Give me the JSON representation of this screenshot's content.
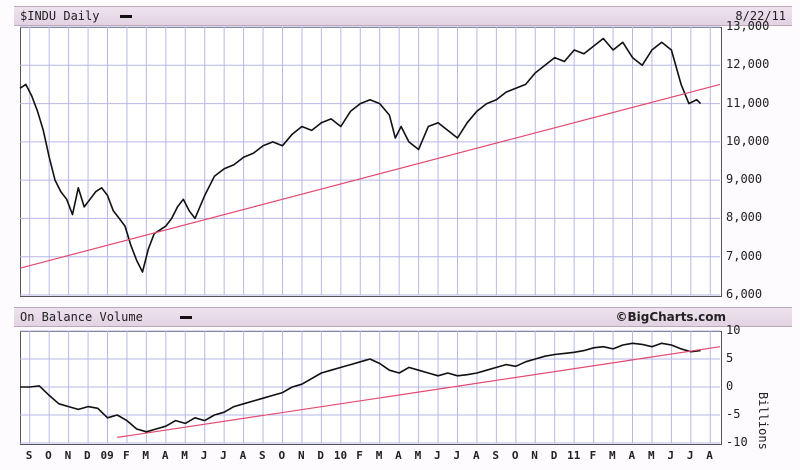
{
  "chart_data": [
    {
      "type": "line",
      "title": "$INDU Daily",
      "date": "8/22/11",
      "ylim": [
        6000,
        13000
      ],
      "yticks": [
        6000,
        7000,
        8000,
        9000,
        10000,
        11000,
        12000,
        13000
      ],
      "ytick_labels": [
        "6,000",
        "7,000",
        "8,000",
        "9,000",
        "10,000",
        "11,000",
        "12,000",
        "13,000"
      ],
      "xlim": [
        0,
        36
      ],
      "grid": true,
      "series": [
        {
          "color": "#111111",
          "x": [
            0,
            0.3,
            0.6,
            0.9,
            1.2,
            1.5,
            1.8,
            2.1,
            2.4,
            2.7,
            3.0,
            3.3,
            3.6,
            3.9,
            4.2,
            4.5,
            4.8,
            5.1,
            5.4,
            5.7,
            6.0,
            6.3,
            6.6,
            6.9,
            7.2,
            7.5,
            7.8,
            8.1,
            8.4,
            8.7,
            9.0,
            9.5,
            10.0,
            10.5,
            11.0,
            11.5,
            12.0,
            12.5,
            13.0,
            13.5,
            14.0,
            14.5,
            15.0,
            15.5,
            16.0,
            16.5,
            17.0,
            17.5,
            18.0,
            18.5,
            19.0,
            19.3,
            19.6,
            20.0,
            20.5,
            21.0,
            21.5,
            22.0,
            22.5,
            23.0,
            23.5,
            24.0,
            24.5,
            25.0,
            25.5,
            26.0,
            26.5,
            27.0,
            27.5,
            28.0,
            28.5,
            29.0,
            29.5,
            30.0,
            30.5,
            31.0,
            31.5,
            32.0,
            32.5,
            33.0,
            33.5,
            34.0,
            34.4,
            34.8,
            35.0
          ],
          "values": [
            11400,
            11500,
            11200,
            10800,
            10300,
            9600,
            9000,
            8700,
            8500,
            8100,
            8800,
            8300,
            8500,
            8700,
            8800,
            8600,
            8200,
            8000,
            7800,
            7300,
            6900,
            6600,
            7200,
            7600,
            7700,
            7800,
            8000,
            8300,
            8500,
            8200,
            8000,
            8600,
            9100,
            9300,
            9400,
            9600,
            9700,
            9900,
            10000,
            9900,
            10200,
            10400,
            10300,
            10500,
            10600,
            10400,
            10800,
            11000,
            11100,
            11000,
            10700,
            10100,
            10400,
            10000,
            9800,
            10400,
            10500,
            10300,
            10100,
            10500,
            10800,
            11000,
            11100,
            11300,
            11400,
            11500,
            11800,
            12000,
            12200,
            12100,
            12400,
            12300,
            12500,
            12700,
            12400,
            12600,
            12200,
            12000,
            12400,
            12600,
            12400,
            11500,
            11000,
            11100,
            11000
          ]
        },
        {
          "color": "#e24a6e",
          "x": [
            0,
            36
          ],
          "values": [
            6700,
            11500
          ]
        }
      ]
    },
    {
      "type": "line",
      "title": "On Balance Volume",
      "ylabel": "Billions",
      "ylim": [
        -10,
        10
      ],
      "yticks": [
        -10,
        -5,
        0,
        5,
        10
      ],
      "ytick_labels": [
        "-10",
        "-5",
        "0",
        "5",
        "10"
      ],
      "xlim": [
        0,
        36
      ],
      "grid": true,
      "series": [
        {
          "color": "#111111",
          "x": [
            0,
            0.5,
            1.0,
            1.5,
            2.0,
            2.5,
            3.0,
            3.5,
            4.0,
            4.5,
            5.0,
            5.5,
            6.0,
            6.5,
            7.0,
            7.5,
            8.0,
            8.5,
            9.0,
            9.5,
            10.0,
            10.5,
            11.0,
            11.5,
            12.0,
            12.5,
            13.0,
            13.5,
            14.0,
            14.5,
            15.0,
            15.5,
            16.0,
            16.5,
            17.0,
            17.5,
            18.0,
            18.5,
            19.0,
            19.5,
            20.0,
            20.5,
            21.0,
            21.5,
            22.0,
            22.5,
            23.0,
            23.5,
            24.0,
            24.5,
            25.0,
            25.5,
            26.0,
            26.5,
            27.0,
            27.5,
            28.0,
            28.5,
            29.0,
            29.5,
            30.0,
            30.5,
            31.0,
            31.5,
            32.0,
            32.5,
            33.0,
            33.5,
            34.0,
            34.5,
            35.0
          ],
          "values": [
            0,
            0,
            0.2,
            -1.5,
            -3,
            -3.5,
            -4,
            -3.5,
            -3.8,
            -5.5,
            -5,
            -6,
            -7.5,
            -8,
            -7.5,
            -7,
            -6,
            -6.5,
            -5.5,
            -6,
            -5,
            -4.5,
            -3.5,
            -3,
            -2.5,
            -2,
            -1.5,
            -1,
            0,
            0.5,
            1.5,
            2.5,
            3,
            3.5,
            4,
            4.5,
            5,
            4.2,
            3,
            2.5,
            3.5,
            3,
            2.5,
            2,
            2.5,
            2,
            2.2,
            2.5,
            3,
            3.5,
            4,
            3.7,
            4.5,
            5,
            5.5,
            5.8,
            6,
            6.2,
            6.5,
            7,
            7.2,
            6.8,
            7.5,
            7.8,
            7.6,
            7.2,
            7.8,
            7.5,
            6.8,
            6.3,
            6.5
          ]
        },
        {
          "color": "#e24a6e",
          "x": [
            5,
            36
          ],
          "values": [
            -9,
            7.2
          ]
        }
      ]
    }
  ],
  "x_axis": {
    "labels": [
      "S",
      "O",
      "N",
      "D",
      "09",
      "F",
      "M",
      "A",
      "M",
      "J",
      "J",
      "A",
      "S",
      "O",
      "N",
      "D",
      "10",
      "F",
      "M",
      "A",
      "M",
      "J",
      "J",
      "A",
      "S",
      "O",
      "N",
      "D",
      "11",
      "F",
      "M",
      "A",
      "M",
      "J",
      "J",
      "A"
    ]
  },
  "watermark": "©BigCharts.com",
  "colors": {
    "price_line": "#111111",
    "trend_line": "#e24a6e",
    "grid": "#b7b7e8",
    "header_bg": "#e6d6e6"
  }
}
